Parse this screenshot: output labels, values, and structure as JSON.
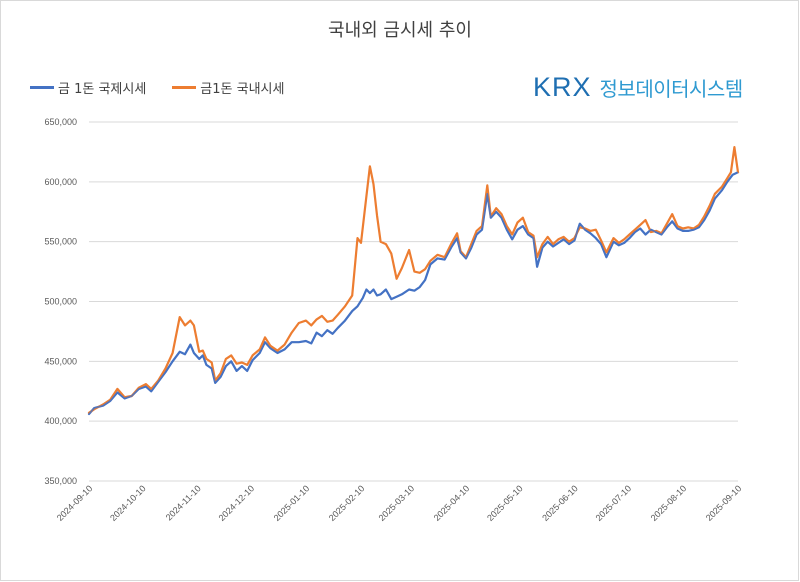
{
  "chart_data": {
    "type": "line",
    "title": "국내외 금시세 추이",
    "ylim": [
      350000,
      650000
    ],
    "y_ticks": [
      "350,000",
      "400,000",
      "450,000",
      "500,000",
      "550,000",
      "600,000",
      "650,000"
    ],
    "y_tick_values": [
      350000,
      400000,
      450000,
      500000,
      550000,
      600000,
      650000
    ],
    "x_range": [
      "2024-09-10",
      "2025-09-10"
    ],
    "x_ticks": [
      "2024-09-10",
      "2024-10-10",
      "2024-11-10",
      "2024-12-10",
      "2025-01-10",
      "2025-02-10",
      "2025-03-10",
      "2025-04-10",
      "2025-05-10",
      "2025-06-10",
      "2025-07-10",
      "2025-08-10",
      "2025-09-10"
    ],
    "grid": "horizontal",
    "legend_position": "top-left",
    "series": [
      {
        "name": "금 1돈 국제시세",
        "color": "#4472c4",
        "points": [
          [
            "2024-09-10",
            406000
          ],
          [
            "2024-09-13",
            411000
          ],
          [
            "2024-09-18",
            413000
          ],
          [
            "2024-09-22",
            417000
          ],
          [
            "2024-09-26",
            424000
          ],
          [
            "2024-09-30",
            419000
          ],
          [
            "2024-10-04",
            421000
          ],
          [
            "2024-10-08",
            427000
          ],
          [
            "2024-10-12",
            429000
          ],
          [
            "2024-10-15",
            425000
          ],
          [
            "2024-10-19",
            433000
          ],
          [
            "2024-10-23",
            441000
          ],
          [
            "2024-10-27",
            450000
          ],
          [
            "2024-10-31",
            458000
          ],
          [
            "2024-11-03",
            456000
          ],
          [
            "2024-11-06",
            464000
          ],
          [
            "2024-11-08",
            457000
          ],
          [
            "2024-11-11",
            452000
          ],
          [
            "2024-11-13",
            455000
          ],
          [
            "2024-11-15",
            447000
          ],
          [
            "2024-11-18",
            444000
          ],
          [
            "2024-11-20",
            432000
          ],
          [
            "2024-11-23",
            437000
          ],
          [
            "2024-11-26",
            446000
          ],
          [
            "2024-11-29",
            450000
          ],
          [
            "2024-12-02",
            442000
          ],
          [
            "2024-12-05",
            446000
          ],
          [
            "2024-12-08",
            442000
          ],
          [
            "2024-12-11",
            451000
          ],
          [
            "2024-12-15",
            457000
          ],
          [
            "2024-12-18",
            466000
          ],
          [
            "2024-12-21",
            461000
          ],
          [
            "2024-12-25",
            457000
          ],
          [
            "2024-12-29",
            460000
          ],
          [
            "2025-01-02",
            466000
          ],
          [
            "2025-01-06",
            466000
          ],
          [
            "2025-01-10",
            467000
          ],
          [
            "2025-01-13",
            465000
          ],
          [
            "2025-01-16",
            474000
          ],
          [
            "2025-01-19",
            471000
          ],
          [
            "2025-01-22",
            476000
          ],
          [
            "2025-01-25",
            473000
          ],
          [
            "2025-01-28",
            478000
          ],
          [
            "2025-02-01",
            484000
          ],
          [
            "2025-02-05",
            492000
          ],
          [
            "2025-02-08",
            496000
          ],
          [
            "2025-02-11",
            503000
          ],
          [
            "2025-02-13",
            510000
          ],
          [
            "2025-02-15",
            507000
          ],
          [
            "2025-02-17",
            510000
          ],
          [
            "2025-02-19",
            505000
          ],
          [
            "2025-02-21",
            506000
          ],
          [
            "2025-02-24",
            510000
          ],
          [
            "2025-02-27",
            502000
          ],
          [
            "2025-03-02",
            504000
          ],
          [
            "2025-03-05",
            506000
          ],
          [
            "2025-03-09",
            510000
          ],
          [
            "2025-03-12",
            509000
          ],
          [
            "2025-03-15",
            512000
          ],
          [
            "2025-03-18",
            518000
          ],
          [
            "2025-03-21",
            531000
          ],
          [
            "2025-03-25",
            536000
          ],
          [
            "2025-03-29",
            535000
          ],
          [
            "2025-04-02",
            546000
          ],
          [
            "2025-04-05",
            553000
          ],
          [
            "2025-04-07",
            541000
          ],
          [
            "2025-04-10",
            536000
          ],
          [
            "2025-04-13",
            545000
          ],
          [
            "2025-04-16",
            556000
          ],
          [
            "2025-04-19",
            560000
          ],
          [
            "2025-04-22",
            590000
          ],
          [
            "2025-04-24",
            570000
          ],
          [
            "2025-04-27",
            575000
          ],
          [
            "2025-04-30",
            570000
          ],
          [
            "2025-05-03",
            560000
          ],
          [
            "2025-05-06",
            552000
          ],
          [
            "2025-05-09",
            560000
          ],
          [
            "2025-05-12",
            563000
          ],
          [
            "2025-05-15",
            556000
          ],
          [
            "2025-05-18",
            553000
          ],
          [
            "2025-05-20",
            529000
          ],
          [
            "2025-05-23",
            545000
          ],
          [
            "2025-05-26",
            550000
          ],
          [
            "2025-05-29",
            546000
          ],
          [
            "2025-06-01",
            549000
          ],
          [
            "2025-06-04",
            552000
          ],
          [
            "2025-06-07",
            548000
          ],
          [
            "2025-06-10",
            551000
          ],
          [
            "2025-06-13",
            565000
          ],
          [
            "2025-06-16",
            560000
          ],
          [
            "2025-06-19",
            557000
          ],
          [
            "2025-06-22",
            553000
          ],
          [
            "2025-06-25",
            548000
          ],
          [
            "2025-06-28",
            537000
          ],
          [
            "2025-07-02",
            550000
          ],
          [
            "2025-07-05",
            547000
          ],
          [
            "2025-07-08",
            549000
          ],
          [
            "2025-07-11",
            553000
          ],
          [
            "2025-07-14",
            558000
          ],
          [
            "2025-07-17",
            561000
          ],
          [
            "2025-07-20",
            556000
          ],
          [
            "2025-07-23",
            560000
          ],
          [
            "2025-07-26",
            558000
          ],
          [
            "2025-07-29",
            556000
          ],
          [
            "2025-08-01",
            562000
          ],
          [
            "2025-08-04",
            567000
          ],
          [
            "2025-08-07",
            561000
          ],
          [
            "2025-08-10",
            559000
          ],
          [
            "2025-08-13",
            559000
          ],
          [
            "2025-08-16",
            560000
          ],
          [
            "2025-08-19",
            562000
          ],
          [
            "2025-08-22",
            568000
          ],
          [
            "2025-08-25",
            576000
          ],
          [
            "2025-08-28",
            586000
          ],
          [
            "2025-09-01",
            593000
          ],
          [
            "2025-09-04",
            600000
          ],
          [
            "2025-09-07",
            606000
          ],
          [
            "2025-09-10",
            608000
          ]
        ]
      },
      {
        "name": "금1돈 국내시세",
        "color": "#ed7d31",
        "points": [
          [
            "2024-09-10",
            407000
          ],
          [
            "2024-09-13",
            410000
          ],
          [
            "2024-09-18",
            414000
          ],
          [
            "2024-09-22",
            418000
          ],
          [
            "2024-09-26",
            427000
          ],
          [
            "2024-09-30",
            420000
          ],
          [
            "2024-10-04",
            421000
          ],
          [
            "2024-10-08",
            428000
          ],
          [
            "2024-10-12",
            431000
          ],
          [
            "2024-10-15",
            427000
          ],
          [
            "2024-10-19",
            434000
          ],
          [
            "2024-10-23",
            444000
          ],
          [
            "2024-10-27",
            457000
          ],
          [
            "2024-10-31",
            487000
          ],
          [
            "2024-11-03",
            480000
          ],
          [
            "2024-11-06",
            484000
          ],
          [
            "2024-11-08",
            480000
          ],
          [
            "2024-11-11",
            458000
          ],
          [
            "2024-11-13",
            459000
          ],
          [
            "2024-11-15",
            452000
          ],
          [
            "2024-11-18",
            449000
          ],
          [
            "2024-11-20",
            434000
          ],
          [
            "2024-11-23",
            440000
          ],
          [
            "2024-11-26",
            452000
          ],
          [
            "2024-11-29",
            455000
          ],
          [
            "2024-12-02",
            448000
          ],
          [
            "2024-12-05",
            449000
          ],
          [
            "2024-12-08",
            447000
          ],
          [
            "2024-12-11",
            455000
          ],
          [
            "2024-12-15",
            460000
          ],
          [
            "2024-12-18",
            470000
          ],
          [
            "2024-12-21",
            463000
          ],
          [
            "2024-12-25",
            459000
          ],
          [
            "2024-12-29",
            464000
          ],
          [
            "2025-01-02",
            474000
          ],
          [
            "2025-01-06",
            482000
          ],
          [
            "2025-01-10",
            484000
          ],
          [
            "2025-01-13",
            480000
          ],
          [
            "2025-01-16",
            485000
          ],
          [
            "2025-01-19",
            488000
          ],
          [
            "2025-01-22",
            483000
          ],
          [
            "2025-01-25",
            484000
          ],
          [
            "2025-01-28",
            489000
          ],
          [
            "2025-02-01",
            496000
          ],
          [
            "2025-02-05",
            505000
          ],
          [
            "2025-02-08",
            553000
          ],
          [
            "2025-02-10",
            549000
          ],
          [
            "2025-02-13",
            588000
          ],
          [
            "2025-02-15",
            613000
          ],
          [
            "2025-02-17",
            598000
          ],
          [
            "2025-02-19",
            572000
          ],
          [
            "2025-02-21",
            550000
          ],
          [
            "2025-02-24",
            548000
          ],
          [
            "2025-02-27",
            540000
          ],
          [
            "2025-03-02",
            519000
          ],
          [
            "2025-03-05",
            528000
          ],
          [
            "2025-03-09",
            543000
          ],
          [
            "2025-03-12",
            525000
          ],
          [
            "2025-03-15",
            524000
          ],
          [
            "2025-03-18",
            527000
          ],
          [
            "2025-03-21",
            534000
          ],
          [
            "2025-03-25",
            539000
          ],
          [
            "2025-03-29",
            537000
          ],
          [
            "2025-04-02",
            549000
          ],
          [
            "2025-04-05",
            557000
          ],
          [
            "2025-04-07",
            542000
          ],
          [
            "2025-04-10",
            537000
          ],
          [
            "2025-04-13",
            548000
          ],
          [
            "2025-04-16",
            559000
          ],
          [
            "2025-04-19",
            563000
          ],
          [
            "2025-04-22",
            597000
          ],
          [
            "2025-04-24",
            571000
          ],
          [
            "2025-04-27",
            578000
          ],
          [
            "2025-04-30",
            573000
          ],
          [
            "2025-05-03",
            563000
          ],
          [
            "2025-05-06",
            556000
          ],
          [
            "2025-05-09",
            566000
          ],
          [
            "2025-05-12",
            570000
          ],
          [
            "2025-05-15",
            558000
          ],
          [
            "2025-05-18",
            555000
          ],
          [
            "2025-05-20",
            537000
          ],
          [
            "2025-05-23",
            548000
          ],
          [
            "2025-05-26",
            554000
          ],
          [
            "2025-05-29",
            548000
          ],
          [
            "2025-06-01",
            552000
          ],
          [
            "2025-06-04",
            554000
          ],
          [
            "2025-06-07",
            550000
          ],
          [
            "2025-06-10",
            553000
          ],
          [
            "2025-06-13",
            562000
          ],
          [
            "2025-06-16",
            561000
          ],
          [
            "2025-06-19",
            559000
          ],
          [
            "2025-06-22",
            560000
          ],
          [
            "2025-06-25",
            551000
          ],
          [
            "2025-06-28",
            541000
          ],
          [
            "2025-07-02",
            553000
          ],
          [
            "2025-07-05",
            549000
          ],
          [
            "2025-07-08",
            552000
          ],
          [
            "2025-07-11",
            556000
          ],
          [
            "2025-07-14",
            560000
          ],
          [
            "2025-07-17",
            564000
          ],
          [
            "2025-07-20",
            568000
          ],
          [
            "2025-07-23",
            558000
          ],
          [
            "2025-07-26",
            559000
          ],
          [
            "2025-07-29",
            557000
          ],
          [
            "2025-08-01",
            565000
          ],
          [
            "2025-08-04",
            573000
          ],
          [
            "2025-08-07",
            563000
          ],
          [
            "2025-08-10",
            561000
          ],
          [
            "2025-08-13",
            562000
          ],
          [
            "2025-08-16",
            561000
          ],
          [
            "2025-08-19",
            564000
          ],
          [
            "2025-08-22",
            571000
          ],
          [
            "2025-08-25",
            580000
          ],
          [
            "2025-08-28",
            590000
          ],
          [
            "2025-09-01",
            596000
          ],
          [
            "2025-09-04",
            603000
          ],
          [
            "2025-09-06",
            608000
          ],
          [
            "2025-09-08",
            629000
          ],
          [
            "2025-09-10",
            608000
          ]
        ]
      }
    ]
  },
  "logo": {
    "mark": "KRX",
    "text": "정보데이터시스템"
  }
}
